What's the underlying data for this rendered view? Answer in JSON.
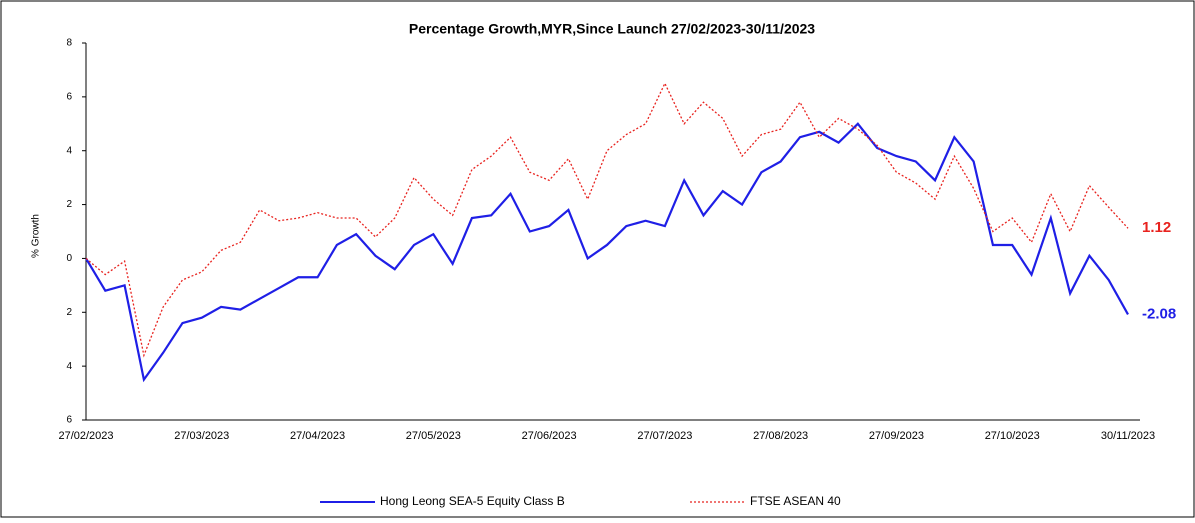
{
  "chart_data": {
    "type": "line",
    "title": "Percentage Growth,MYR,Since Launch 27/02/2023-30/11/2023",
    "y_label": "% Growth",
    "categories": [
      "27/02/2023",
      null,
      null,
      null,
      null,
      null,
      "27/03/2023",
      null,
      null,
      null,
      null,
      null,
      "27/04/2023",
      null,
      null,
      null,
      null,
      null,
      "27/05/2023",
      null,
      null,
      null,
      null,
      null,
      "27/06/2023",
      null,
      null,
      null,
      null,
      null,
      "27/07/2023",
      null,
      null,
      null,
      null,
      null,
      "27/08/2023",
      null,
      null,
      null,
      null,
      null,
      "27/09/2023",
      null,
      null,
      null,
      null,
      null,
      "27/10/2023",
      null,
      null,
      null,
      null,
      null,
      "30/11/2023"
    ],
    "series": [
      {
        "name": "Hong Leong SEA-5 Equity Class B",
        "color": "#1f1fe6",
        "dashed": false,
        "values": [
          0,
          -1.2,
          -1.0,
          -4.5,
          -3.5,
          -2.4,
          -2.2,
          -1.8,
          -1.9,
          -1.5,
          -1.1,
          -0.7,
          -0.7,
          0.5,
          0.9,
          0.1,
          -0.4,
          0.5,
          0.9,
          -0.2,
          1.5,
          1.6,
          2.4,
          1.0,
          1.2,
          1.8,
          0,
          0.5,
          1.2,
          1.4,
          1.2,
          2.9,
          1.6,
          2.5,
          2.0,
          3.2,
          3.6,
          4.5,
          4.7,
          4.3,
          5.0,
          4.1,
          3.8,
          3.6,
          2.9,
          4.5,
          3.6,
          0.5,
          0.5,
          -0.6,
          1.5,
          -1.3,
          0.1,
          -0.8,
          -2.08
        ]
      },
      {
        "name": "FTSE ASEAN 40",
        "color": "#e8231f",
        "dashed": true,
        "values": [
          0,
          -0.6,
          -0.1,
          -3.6,
          -1.8,
          -0.8,
          -0.5,
          0.3,
          0.6,
          1.8,
          1.4,
          1.5,
          1.7,
          1.5,
          1.5,
          0.8,
          1.5,
          3.0,
          2.2,
          1.6,
          3.3,
          3.8,
          4.5,
          3.2,
          2.9,
          3.7,
          2.2,
          4.0,
          4.6,
          5.0,
          6.5,
          5.0,
          5.8,
          5.2,
          3.8,
          4.6,
          4.8,
          5.8,
          4.5,
          5.2,
          4.8,
          4.2,
          3.2,
          2.8,
          2.2,
          3.8,
          2.6,
          1.0,
          1.5,
          0.6,
          2.4,
          1.0,
          2.7,
          1.9,
          1.12
        ]
      }
    ],
    "ylim": [
      -6,
      8
    ],
    "yticks": [
      {
        "value": -6,
        "label": "6"
      },
      {
        "value": -4,
        "label": "4"
      },
      {
        "value": -2,
        "label": "2"
      },
      0,
      2,
      4,
      6,
      8
    ],
    "legend": "bottom"
  }
}
